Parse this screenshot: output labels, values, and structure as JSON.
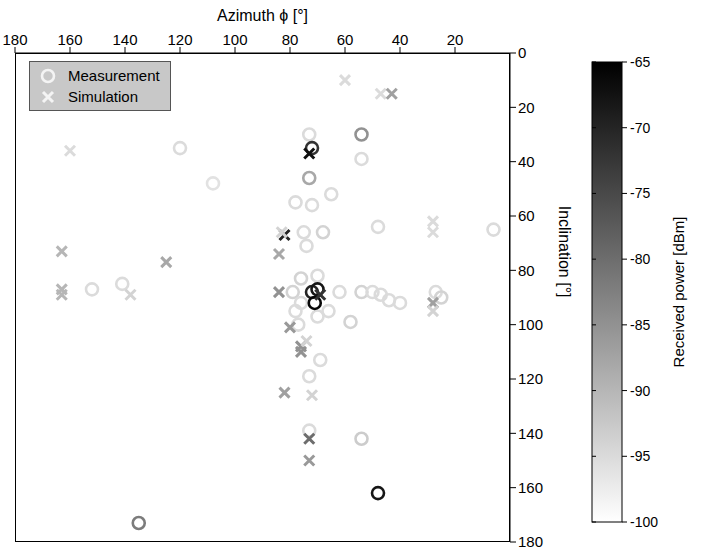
{
  "chart_data": {
    "type": "scatter",
    "x_label": "Azimuth ϕ [°]",
    "y_label": "Inclination [°]",
    "xlim": [
      180,
      0
    ],
    "xticks": [
      180,
      160,
      140,
      120,
      100,
      80,
      60,
      40,
      20
    ],
    "ylim": [
      180,
      0
    ],
    "yticks": [
      0,
      20,
      40,
      60,
      80,
      100,
      120,
      140,
      160,
      180
    ],
    "legend": "upper left",
    "series": [
      {
        "name": "Measurement",
        "marker": "circle",
        "x": [
          120,
          73,
          72,
          54,
          54,
          73,
          65,
          108,
          78,
          72,
          48,
          6,
          75,
          68,
          74,
          76,
          70,
          72,
          70,
          62,
          54,
          50,
          47,
          44,
          40,
          27,
          25,
          152,
          141,
          79,
          76,
          78,
          66,
          70,
          58,
          77,
          69,
          73,
          73,
          54,
          48,
          135,
          71
        ],
        "y": [
          35,
          30,
          35,
          30,
          39,
          46,
          52,
          48,
          55,
          56,
          64,
          65,
          66,
          66,
          71,
          83,
          82,
          88,
          87,
          88,
          88,
          88,
          89,
          91,
          92,
          88,
          90,
          87,
          85,
          88,
          92,
          95,
          95,
          97,
          99,
          100,
          113,
          119,
          139,
          142,
          162,
          173,
          92
        ],
        "power": [
          -95,
          -95,
          -72,
          -85,
          -95,
          -88,
          -95,
          -96,
          -95,
          -95,
          -95,
          -95,
          -95,
          -94,
          -95,
          -94,
          -95,
          -70,
          -68,
          -95,
          -94,
          -95,
          -95,
          -95,
          -95,
          -95,
          -94,
          -95,
          -95,
          -94,
          -95,
          -95,
          -95,
          -95,
          -94,
          -95,
          -95,
          -95,
          -95,
          -93,
          -68,
          -82,
          -66
        ]
      },
      {
        "name": "Simulation",
        "marker": "cross",
        "x": [
          160,
          60,
          47,
          43,
          73,
          82,
          84,
          83,
          28,
          28,
          163,
          163,
          163,
          138,
          125,
          84,
          80,
          76,
          76,
          74,
          28,
          28,
          82,
          72,
          73,
          73,
          69
        ],
        "y": [
          36,
          10,
          15,
          15,
          37,
          67,
          74,
          66,
          62,
          66,
          73,
          87,
          89,
          89,
          77,
          88,
          101,
          108,
          110,
          106,
          92,
          95,
          125,
          126,
          142,
          150,
          89
        ],
        "power": [
          -95,
          -95,
          -95,
          -87,
          -67,
          -70,
          -88,
          -94,
          -95,
          -95,
          -90,
          -90,
          -90,
          -94,
          -88,
          -85,
          -86,
          -85,
          -85,
          -94,
          -87,
          -94,
          -87,
          -94,
          -80,
          -86,
          -72
        ]
      }
    ],
    "colorbar": {
      "label": "Received power [dBm]",
      "range": [
        -100,
        -65
      ],
      "ticks": [
        -65,
        -70,
        -75,
        -80,
        -85,
        -90,
        -95,
        -100
      ]
    }
  }
}
